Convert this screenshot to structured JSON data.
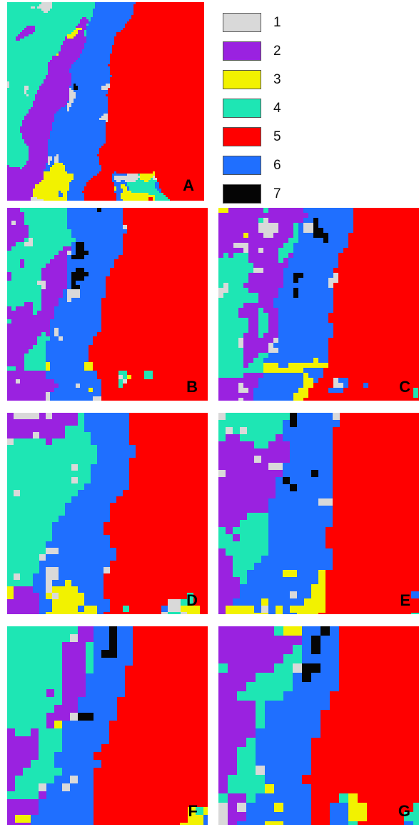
{
  "legend": [
    {
      "label": "1",
      "color": "#d9d9d9"
    },
    {
      "label": "2",
      "color": "#9a22e0"
    },
    {
      "label": "3",
      "color": "#f2f200"
    },
    {
      "label": "4",
      "color": "#1ee6b4"
    },
    {
      "label": "5",
      "color": "#ff0000"
    },
    {
      "label": "6",
      "color": "#1f6fff"
    },
    {
      "label": "7",
      "color": "#050505"
    }
  ],
  "panels": [
    {
      "letter": "A"
    },
    {
      "letter": "B"
    },
    {
      "letter": "C"
    },
    {
      "letter": "D"
    },
    {
      "letter": "E"
    },
    {
      "letter": "F"
    },
    {
      "letter": "G"
    }
  ]
}
